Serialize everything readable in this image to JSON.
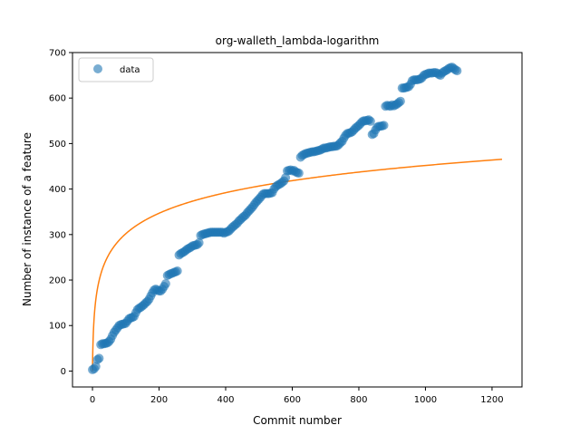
{
  "chart_data": {
    "type": "scatter",
    "title": "org-walleth_lambda-logarithm",
    "xlabel": "Commit number",
    "ylabel": "Number of instance of a feature",
    "xlim": [
      -60,
      1290
    ],
    "ylim": [
      -35,
      700
    ],
    "xticks": [
      0,
      200,
      400,
      600,
      800,
      1000,
      1200
    ],
    "yticks": [
      0,
      100,
      200,
      300,
      400,
      500,
      600,
      700
    ],
    "legend": {
      "placement": "upper-left",
      "entries": [
        "data"
      ]
    },
    "colors": {
      "data": "#1f77b4",
      "fit": "#ff7f0e"
    },
    "series": [
      {
        "name": "data",
        "kind": "scatter",
        "points": [
          [
            0,
            3
          ],
          [
            5,
            5
          ],
          [
            10,
            10
          ],
          [
            15,
            25
          ],
          [
            20,
            28
          ],
          [
            25,
            58
          ],
          [
            30,
            60
          ],
          [
            35,
            60
          ],
          [
            40,
            61
          ],
          [
            45,
            62
          ],
          [
            50,
            65
          ],
          [
            55,
            70
          ],
          [
            60,
            78
          ],
          [
            65,
            85
          ],
          [
            70,
            90
          ],
          [
            75,
            95
          ],
          [
            80,
            100
          ],
          [
            85,
            102
          ],
          [
            90,
            103
          ],
          [
            95,
            104
          ],
          [
            100,
            105
          ],
          [
            105,
            110
          ],
          [
            110,
            115
          ],
          [
            115,
            117
          ],
          [
            120,
            118
          ],
          [
            125,
            120
          ],
          [
            130,
            128
          ],
          [
            135,
            135
          ],
          [
            140,
            138
          ],
          [
            145,
            140
          ],
          [
            150,
            143
          ],
          [
            155,
            146
          ],
          [
            160,
            150
          ],
          [
            165,
            153
          ],
          [
            170,
            158
          ],
          [
            175,
            165
          ],
          [
            180,
            172
          ],
          [
            185,
            178
          ],
          [
            190,
            180
          ],
          [
            195,
            178
          ],
          [
            200,
            176
          ],
          [
            205,
            176
          ],
          [
            210,
            180
          ],
          [
            215,
            186
          ],
          [
            220,
            192
          ],
          [
            225,
            210
          ],
          [
            230,
            212
          ],
          [
            235,
            214
          ],
          [
            240,
            215
          ],
          [
            245,
            217
          ],
          [
            250,
            218
          ],
          [
            255,
            220
          ],
          [
            260,
            255
          ],
          [
            265,
            258
          ],
          [
            270,
            260
          ],
          [
            275,
            262
          ],
          [
            280,
            265
          ],
          [
            285,
            268
          ],
          [
            290,
            270
          ],
          [
            295,
            272
          ],
          [
            300,
            275
          ],
          [
            305,
            276
          ],
          [
            310,
            277
          ],
          [
            315,
            278
          ],
          [
            320,
            282
          ],
          [
            325,
            298
          ],
          [
            330,
            300
          ],
          [
            335,
            301
          ],
          [
            340,
            302
          ],
          [
            345,
            303
          ],
          [
            350,
            304
          ],
          [
            355,
            305
          ],
          [
            360,
            305
          ],
          [
            365,
            305
          ],
          [
            370,
            305
          ],
          [
            375,
            305
          ],
          [
            380,
            305
          ],
          [
            385,
            305
          ],
          [
            390,
            305
          ],
          [
            395,
            303
          ],
          [
            400,
            305
          ],
          [
            405,
            306
          ],
          [
            410,
            308
          ],
          [
            415,
            312
          ],
          [
            420,
            316
          ],
          [
            425,
            319
          ],
          [
            430,
            322
          ],
          [
            435,
            325
          ],
          [
            440,
            330
          ],
          [
            445,
            333
          ],
          [
            450,
            337
          ],
          [
            455,
            340
          ],
          [
            460,
            343
          ],
          [
            465,
            348
          ],
          [
            470,
            352
          ],
          [
            475,
            356
          ],
          [
            480,
            360
          ],
          [
            485,
            365
          ],
          [
            490,
            370
          ],
          [
            495,
            374
          ],
          [
            500,
            378
          ],
          [
            505,
            382
          ],
          [
            510,
            387
          ],
          [
            515,
            390
          ],
          [
            520,
            390
          ],
          [
            525,
            390
          ],
          [
            530,
            390
          ],
          [
            535,
            391
          ],
          [
            540,
            392
          ],
          [
            545,
            400
          ],
          [
            550,
            405
          ],
          [
            555,
            408
          ],
          [
            560,
            410
          ],
          [
            565,
            412
          ],
          [
            570,
            415
          ],
          [
            575,
            418
          ],
          [
            580,
            425
          ],
          [
            585,
            440
          ],
          [
            590,
            441
          ],
          [
            595,
            442
          ],
          [
            600,
            440
          ],
          [
            605,
            441
          ],
          [
            610,
            438
          ],
          [
            615,
            436
          ],
          [
            620,
            435
          ],
          [
            625,
            470
          ],
          [
            630,
            474
          ],
          [
            635,
            476
          ],
          [
            640,
            478
          ],
          [
            645,
            479
          ],
          [
            650,
            480
          ],
          [
            655,
            481
          ],
          [
            660,
            482
          ],
          [
            665,
            482
          ],
          [
            670,
            483
          ],
          [
            675,
            484
          ],
          [
            680,
            485
          ],
          [
            685,
            486
          ],
          [
            690,
            488
          ],
          [
            695,
            490
          ],
          [
            700,
            490
          ],
          [
            705,
            491
          ],
          [
            710,
            492
          ],
          [
            715,
            493
          ],
          [
            720,
            493
          ],
          [
            725,
            494
          ],
          [
            730,
            494
          ],
          [
            735,
            495
          ],
          [
            740,
            498
          ],
          [
            745,
            502
          ],
          [
            750,
            505
          ],
          [
            755,
            512
          ],
          [
            760,
            518
          ],
          [
            765,
            522
          ],
          [
            770,
            523
          ],
          [
            775,
            524
          ],
          [
            780,
            526
          ],
          [
            785,
            530
          ],
          [
            790,
            534
          ],
          [
            795,
            537
          ],
          [
            800,
            540
          ],
          [
            805,
            544
          ],
          [
            810,
            548
          ],
          [
            815,
            550
          ],
          [
            820,
            550
          ],
          [
            825,
            551
          ],
          [
            830,
            552
          ],
          [
            835,
            549
          ],
          [
            840,
            520
          ],
          [
            845,
            522
          ],
          [
            850,
            530
          ],
          [
            855,
            536
          ],
          [
            860,
            538
          ],
          [
            865,
            538
          ],
          [
            870,
            539
          ],
          [
            875,
            540
          ],
          [
            880,
            582
          ],
          [
            885,
            584
          ],
          [
            890,
            583
          ],
          [
            895,
            582
          ],
          [
            900,
            585
          ],
          [
            905,
            583
          ],
          [
            910,
            585
          ],
          [
            915,
            587
          ],
          [
            920,
            590
          ],
          [
            925,
            593
          ],
          [
            930,
            622
          ],
          [
            935,
            622
          ],
          [
            940,
            623
          ],
          [
            945,
            624
          ],
          [
            950,
            625
          ],
          [
            955,
            630
          ],
          [
            960,
            638
          ],
          [
            965,
            640
          ],
          [
            970,
            640
          ],
          [
            975,
            640
          ],
          [
            980,
            641
          ],
          [
            985,
            642
          ],
          [
            990,
            645
          ],
          [
            995,
            650
          ],
          [
            1000,
            652
          ],
          [
            1005,
            653
          ],
          [
            1010,
            655
          ],
          [
            1015,
            655
          ],
          [
            1020,
            655
          ],
          [
            1025,
            656
          ],
          [
            1030,
            656
          ],
          [
            1035,
            655
          ],
          [
            1040,
            652
          ],
          [
            1045,
            650
          ],
          [
            1050,
            655
          ],
          [
            1055,
            658
          ],
          [
            1060,
            660
          ],
          [
            1065,
            662
          ],
          [
            1070,
            665
          ],
          [
            1075,
            667
          ],
          [
            1080,
            668
          ],
          [
            1085,
            665
          ],
          [
            1090,
            662
          ],
          [
            1095,
            660
          ]
        ]
      },
      {
        "name": "",
        "kind": "line",
        "formula": "y = 65.4 * ln(x + 1)",
        "coef": 65.4,
        "x_range": [
          0,
          1230
        ]
      }
    ]
  }
}
